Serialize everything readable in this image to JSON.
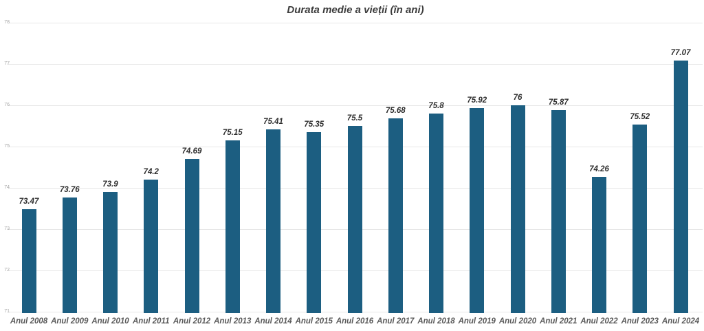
{
  "title": "Durata medie a vieții (în ani)",
  "colors": {
    "bar": "#1c5e81",
    "gridline": "#e7e7e7",
    "title_text": "#3b3b3b",
    "ytick_text": "#a5a5a5",
    "value_label_text": "#2e2e2e",
    "category_label_text": "#595959",
    "background": "#ffffff"
  },
  "chart_data": {
    "type": "bar",
    "title": "Durata medie a vieții (în ani)",
    "categories": [
      "Anul 2008",
      "Anul 2009",
      "Anul 2010",
      "Anul 2011",
      "Anul 2012",
      "Anul 2013",
      "Anul 2014",
      "Anul 2015",
      "Anul 2016",
      "Anul 2017",
      "Anul 2018",
      "Anul 2019",
      "Anul 2020",
      "Anul 2021",
      "Anul 2022",
      "Anul 2023",
      "Anul 2024"
    ],
    "values": [
      73.47,
      73.76,
      73.9,
      74.2,
      74.69,
      75.15,
      75.41,
      75.35,
      75.5,
      75.68,
      75.8,
      75.92,
      76,
      75.87,
      74.26,
      75.52,
      77.07
    ],
    "value_labels_shown": true,
    "xlabel": "",
    "ylabel": "",
    "ylim": [
      71,
      78
    ],
    "yticks": [
      71,
      72,
      73,
      74,
      75,
      76,
      77,
      78
    ],
    "grid": true,
    "legend": false
  }
}
